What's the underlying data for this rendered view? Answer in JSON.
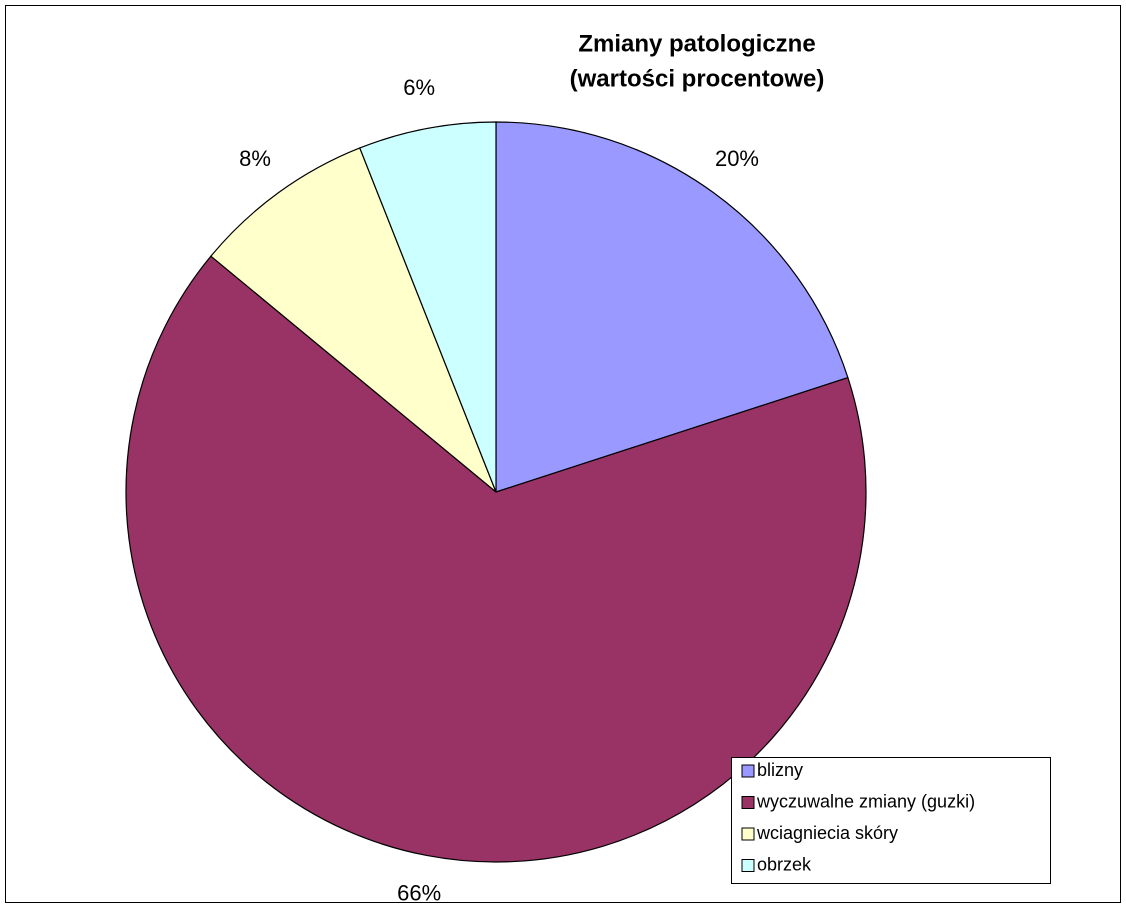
{
  "chart_data": {
    "type": "pie",
    "title": [
      "Zmiany patologiczne",
      "(wartości procentowe)"
    ],
    "categories": [
      "blizny",
      "wyczuwalne zmiany (guzki)",
      "wciagniecia skóry",
      "obrzek"
    ],
    "values": [
      20,
      66,
      8,
      6
    ],
    "value_labels": [
      "20%",
      "66%",
      "8%",
      "6%"
    ],
    "colors": [
      "#9999ff",
      "#993366",
      "#ffffcc",
      "#ccffff"
    ],
    "legend": "bottom-right"
  }
}
